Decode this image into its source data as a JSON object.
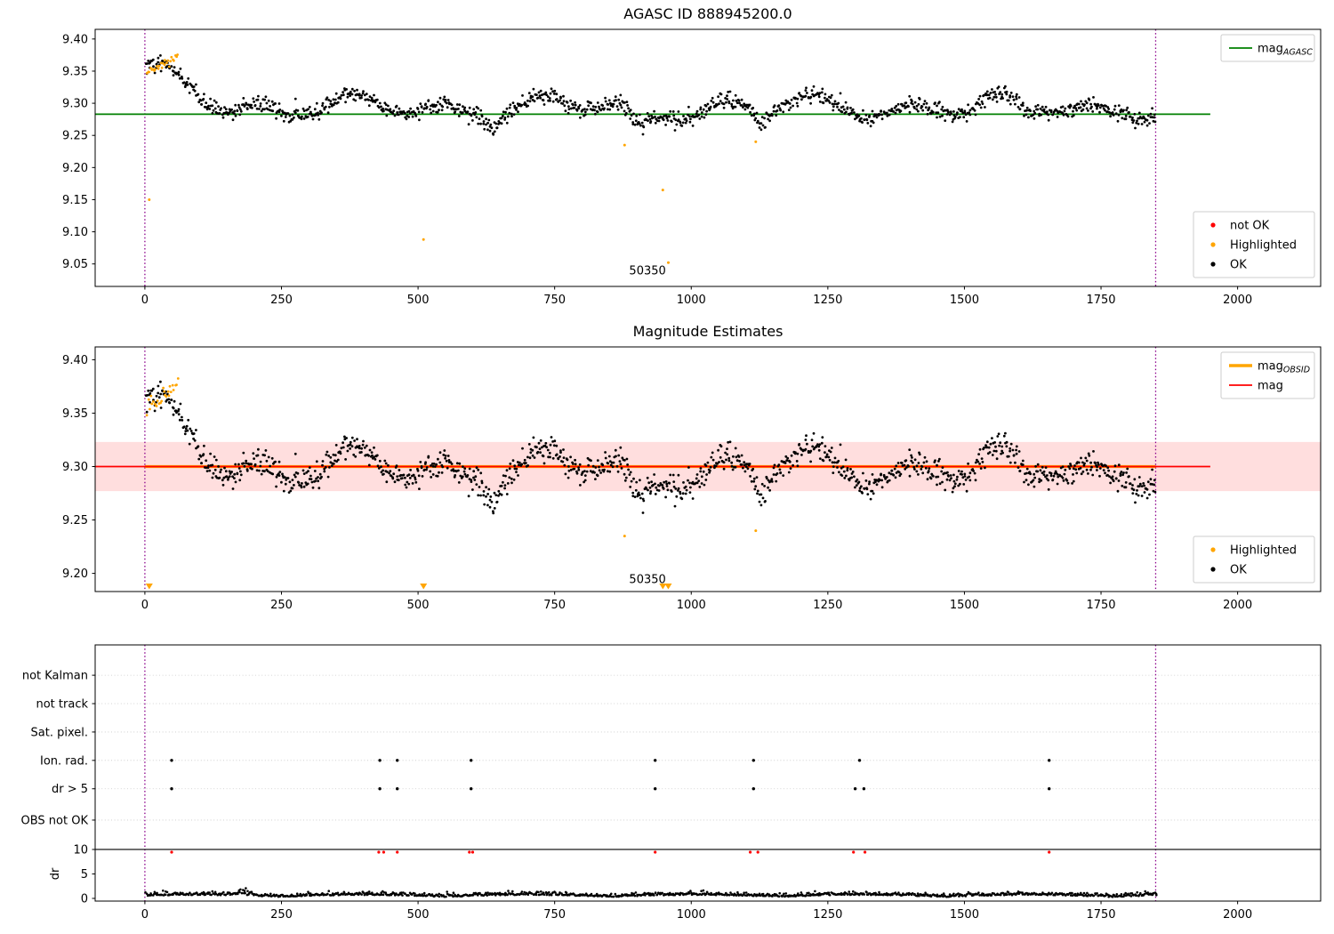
{
  "colors": {
    "background": "#ffffff",
    "ok": "#000000",
    "not_ok": "#ff0000",
    "highlighted": "#ffa500",
    "mag_agasc": "#008000",
    "mag": "#ff0000",
    "mag_obsid": "#ffa500",
    "band": "#ff0000",
    "vline": "#8b008b",
    "grid": "#c8c8c8",
    "spine": "#000000"
  },
  "light_curve": {
    "seed": 42,
    "n": 1300,
    "x0": 2,
    "x1": 1850,
    "base": 9.299,
    "amp1": 0.012,
    "per1": 27,
    "amp2": 0.009,
    "per2": 63,
    "noise": 0.0062,
    "startup_amp": 0.053,
    "startup_tau": 110,
    "dips": [
      [
        905,
        26,
        0.032
      ],
      [
        1128,
        17,
        0.022
      ],
      [
        640,
        18,
        0.016
      ],
      [
        1612,
        20,
        0.013
      ],
      [
        255,
        14,
        0.01
      ]
    ]
  },
  "chart_data": [
    {
      "type": "scatter",
      "title": "AGASC ID 888945200.0",
      "xlim": [
        -91,
        2152
      ],
      "ylim": [
        9.015,
        9.415
      ],
      "xticks": {
        "values": [
          0,
          250,
          500,
          750,
          1000,
          1250,
          1500,
          1750,
          2000
        ],
        "labels": [
          "0",
          "250",
          "500",
          "750",
          "1000",
          "1250",
          "1500",
          "1750",
          "2000"
        ]
      },
      "yticks": {
        "values": [
          9.05,
          9.1,
          9.15,
          9.2,
          9.25,
          9.3,
          9.35,
          9.4
        ],
        "labels": [
          "9.05",
          "9.10",
          "9.15",
          "9.20",
          "9.25",
          "9.30",
          "9.35",
          "9.40"
        ]
      },
      "vlines": [
        0,
        1850
      ],
      "mag_agasc_value": 9.283,
      "line_span": [
        -91,
        1950
      ],
      "y_offset": -0.005,
      "annotation": {
        "text": "50350",
        "x": 920,
        "y": 9.034
      },
      "legend_top": [
        {
          "main": "mag",
          "sub": "AGASC",
          "color": "#008000",
          "type": "line"
        }
      ],
      "legend_bottom": [
        {
          "label": "not OK",
          "color": "#ff0000"
        },
        {
          "label": "Highlighted",
          "color": "#ffa500"
        },
        {
          "label": "OK",
          "color": "#000000"
        }
      ],
      "highlighted_cluster": {
        "seed": 11,
        "n": 26,
        "x0": 4,
        "x1": 60,
        "y0": 9.35,
        "y1": 9.371,
        "jitter": 0.0035
      },
      "highlighted_points": [
        [
          8,
          9.15
        ],
        [
          510,
          9.088
        ],
        [
          878,
          9.235
        ],
        [
          948,
          9.165
        ],
        [
          958,
          9.052
        ],
        [
          1118,
          9.24
        ]
      ]
    },
    {
      "type": "scatter",
      "title": "Magnitude Estimates",
      "xlim": [
        -91,
        2152
      ],
      "ylim": [
        9.183,
        9.412
      ],
      "xticks": {
        "values": [
          0,
          250,
          500,
          750,
          1000,
          1250,
          1500,
          1750,
          2000
        ],
        "labels": [
          "0",
          "250",
          "500",
          "750",
          "1000",
          "1250",
          "1500",
          "1750",
          "2000"
        ]
      },
      "yticks": {
        "values": [
          9.2,
          9.25,
          9.3,
          9.35,
          9.4
        ],
        "labels": [
          "9.20",
          "9.25",
          "9.30",
          "9.35",
          "9.40"
        ]
      },
      "vlines": [
        0,
        1850
      ],
      "mag_value": 9.3,
      "band": {
        "y0": 9.277,
        "y1": 9.323
      },
      "obsid_line_span": [
        0,
        1850
      ],
      "line_span": [
        -91,
        1950
      ],
      "annotation": {
        "text": "50350",
        "x": 920,
        "y": 9.191
      },
      "legend_top": [
        {
          "main": "mag",
          "sub": "OBSID",
          "color": "#ffa500",
          "type": "line-thick"
        },
        {
          "main": "mag",
          "sub": "",
          "color": "#ff0000",
          "type": "line"
        }
      ],
      "legend_bottom": [
        {
          "label": "Highlighted",
          "color": "#ffa500"
        },
        {
          "label": "OK",
          "color": "#000000"
        }
      ],
      "highlighted_cluster": {
        "seed": 12,
        "n": 26,
        "x0": 4,
        "x1": 60,
        "y0": 9.355,
        "y1": 9.378,
        "jitter": 0.0035
      },
      "highlighted_points": [
        [
          878,
          9.235
        ],
        [
          1118,
          9.24
        ]
      ],
      "triangle_y": 9.188,
      "clipped_triangles_x": [
        8,
        510,
        948,
        958
      ]
    },
    {
      "type": "scatter",
      "title": "",
      "ylabel": "dr",
      "xlim": [
        -91,
        2152
      ],
      "ylim": [
        -0.55,
        51.8
      ],
      "xticks": {
        "values": [
          0,
          250,
          500,
          750,
          1000,
          1250,
          1500,
          1750,
          2000
        ],
        "labels": [
          "0",
          "250",
          "500",
          "750",
          "1000",
          "1250",
          "1500",
          "1750",
          "2000"
        ]
      },
      "category_ticks": [
        {
          "label": "not Kalman",
          "value": 45.6
        },
        {
          "label": "not track",
          "value": 39.8
        },
        {
          "label": "Sat. pixel.",
          "value": 34.0
        },
        {
          "label": "Ion. rad.",
          "value": 28.2
        },
        {
          "label": "dr > 5",
          "value": 22.4
        },
        {
          "label": "OBS not OK",
          "value": 16.0
        }
      ],
      "dr_ticks": {
        "values": [
          10,
          5,
          0
        ],
        "labels": [
          "10",
          "5",
          "0"
        ]
      },
      "hline": 10,
      "vlines": [
        0,
        1850
      ],
      "flag_rows": [
        {
          "name": "Ion. rad.",
          "value": 28.2,
          "x": [
            49,
            430,
            462,
            597,
            934,
            1114,
            1308,
            1655
          ]
        },
        {
          "name": "dr > 5",
          "value": 22.4,
          "x": [
            49,
            430,
            462,
            597,
            934,
            1114,
            1300,
            1316,
            1655
          ]
        }
      ],
      "not_ok_points": {
        "y": 9.45,
        "x": [
          49,
          428,
          437,
          462,
          594,
          600,
          934,
          1108,
          1122,
          1297,
          1318,
          1655
        ]
      },
      "dr_series": {
        "seed": 7,
        "n": 1150,
        "x0": 2,
        "x1": 1852,
        "base": 0.3,
        "wave_amp": 0.4,
        "wave_per": 97,
        "noise": 0.3,
        "bump_x": 182,
        "bump_w": 15,
        "bump_amp": 1.3
      }
    }
  ]
}
